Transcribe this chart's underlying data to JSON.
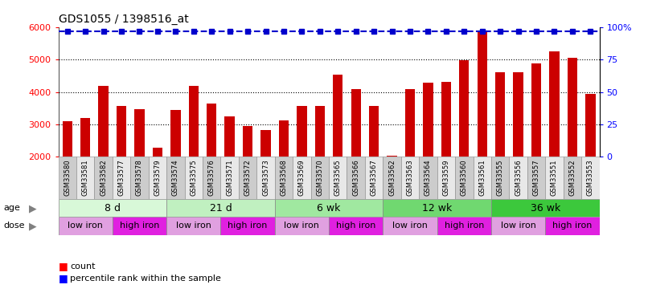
{
  "title": "GDS1055 / 1398516_at",
  "samples": [
    "GSM33580",
    "GSM33581",
    "GSM33582",
    "GSM33577",
    "GSM33578",
    "GSM33579",
    "GSM33574",
    "GSM33575",
    "GSM33576",
    "GSM33571",
    "GSM33572",
    "GSM33573",
    "GSM33568",
    "GSM33569",
    "GSM33570",
    "GSM33565",
    "GSM33566",
    "GSM33567",
    "GSM33562",
    "GSM33563",
    "GSM33564",
    "GSM33559",
    "GSM33560",
    "GSM33561",
    "GSM33555",
    "GSM33556",
    "GSM33557",
    "GSM33551",
    "GSM33552",
    "GSM33553"
  ],
  "counts": [
    3100,
    3200,
    4200,
    3580,
    3480,
    2280,
    3450,
    4200,
    3650,
    3240,
    2960,
    2820,
    3130,
    3570,
    3560,
    4540,
    4080,
    3560,
    2040,
    4100,
    4280,
    4320,
    4980,
    5900,
    4620,
    4620,
    4870,
    5240,
    5060,
    3950
  ],
  "bar_color": "#cc0000",
  "dot_color": "#0000cc",
  "ylim_min": 2000,
  "ylim_max": 6000,
  "yticks_left": [
    2000,
    3000,
    4000,
    5000,
    6000
  ],
  "yticks_right": [
    0,
    25,
    50,
    75,
    100
  ],
  "age_groups": [
    {
      "label": "8 d",
      "start": 0,
      "end": 6
    },
    {
      "label": "21 d",
      "start": 6,
      "end": 12
    },
    {
      "label": "6 wk",
      "start": 12,
      "end": 18
    },
    {
      "label": "12 wk",
      "start": 18,
      "end": 24
    },
    {
      "label": "36 wk",
      "start": 24,
      "end": 30
    }
  ],
  "age_colors": [
    "#d8f8d8",
    "#c0f0c0",
    "#a0e8a0",
    "#70d870",
    "#3cc83c"
  ],
  "dose_groups": [
    {
      "label": "low iron",
      "start": 0,
      "end": 3
    },
    {
      "label": "high iron",
      "start": 3,
      "end": 6
    },
    {
      "label": "low iron",
      "start": 6,
      "end": 9
    },
    {
      "label": "high iron",
      "start": 9,
      "end": 12
    },
    {
      "label": "low iron",
      "start": 12,
      "end": 15
    },
    {
      "label": "high iron",
      "start": 15,
      "end": 18
    },
    {
      "label": "low iron",
      "start": 18,
      "end": 21
    },
    {
      "label": "high iron",
      "start": 21,
      "end": 24
    },
    {
      "label": "low iron",
      "start": 24,
      "end": 27
    },
    {
      "label": "high iron",
      "start": 27,
      "end": 30
    }
  ],
  "dose_low_color": "#e0a0e0",
  "dose_high_color": "#e020e0",
  "background": "#ffffff",
  "bar_width": 0.55
}
